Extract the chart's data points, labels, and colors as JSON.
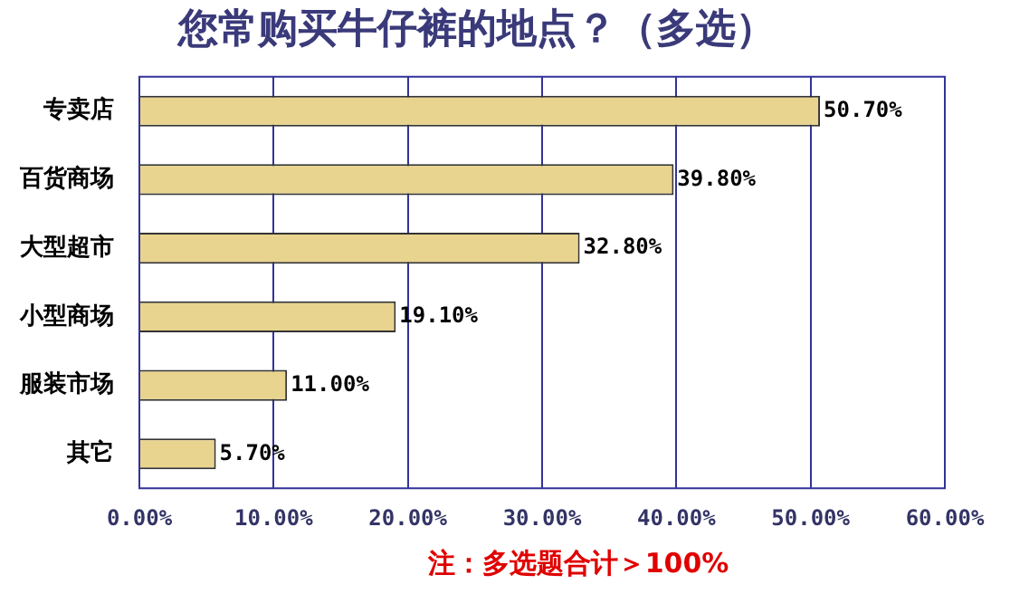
{
  "chart_data": {
    "type": "bar",
    "orientation": "horizontal",
    "title": "您常购买牛仔裤的地点？（多选）",
    "categories": [
      "专卖店",
      "百货商场",
      "大型超市",
      "小型商场",
      "服装市场",
      "其它"
    ],
    "values": [
      50.7,
      39.8,
      32.8,
      19.1,
      11.0,
      5.7
    ],
    "value_labels": [
      "50.70%",
      "39.80%",
      "32.80%",
      "19.10%",
      "11.00%",
      "5.70%"
    ],
    "color": "#e8d48e",
    "xlim": [
      0,
      60
    ],
    "xticks": [
      {
        "value": 0,
        "label": "0.00%"
      },
      {
        "value": 10,
        "label": "10.00%"
      },
      {
        "value": 20,
        "label": "20.00%"
      },
      {
        "value": 30,
        "label": "30.00%"
      },
      {
        "value": 40,
        "label": "40.00%"
      },
      {
        "value": 50,
        "label": "50.00%"
      },
      {
        "value": 60,
        "label": "60.00%"
      }
    ],
    "grid": "x",
    "legend": false,
    "annotations": [
      "注：多选题合计＞100%"
    ]
  }
}
